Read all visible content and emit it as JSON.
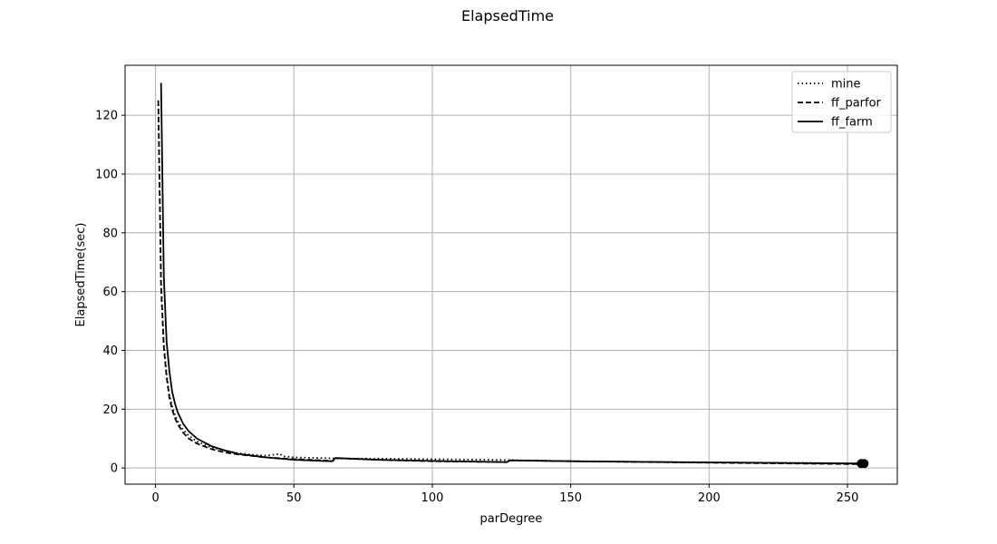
{
  "chart_data": {
    "type": "line",
    "title": "ElapsedTime",
    "xlabel": "parDegree",
    "ylabel": "ElapsedTime(sec)",
    "xlim": [
      -11,
      268
    ],
    "ylim": [
      -5.5,
      137
    ],
    "xticks": [
      0,
      50,
      100,
      150,
      200,
      250
    ],
    "yticks": [
      0,
      20,
      40,
      60,
      80,
      100,
      120
    ],
    "grid": true,
    "legend_position": "top-right",
    "series": [
      {
        "name": "mine",
        "style": "dotted",
        "color": "#000000",
        "points": [
          [
            1,
            125
          ],
          [
            2,
            63
          ],
          [
            3,
            42
          ],
          [
            4,
            32
          ],
          [
            5,
            25
          ],
          [
            6,
            21
          ],
          [
            7,
            18
          ],
          [
            8,
            16
          ],
          [
            10,
            13
          ],
          [
            12,
            11
          ],
          [
            15,
            9
          ],
          [
            20,
            7
          ],
          [
            25,
            6
          ],
          [
            30,
            5
          ],
          [
            35,
            4.5
          ],
          [
            40,
            4.2
          ],
          [
            45,
            4.8
          ],
          [
            46,
            4
          ],
          [
            50,
            3.6
          ],
          [
            60,
            3.4
          ],
          [
            64,
            3.3
          ],
          [
            65,
            3.2
          ],
          [
            80,
            3.2
          ],
          [
            100,
            3
          ],
          [
            128,
            2.7
          ],
          [
            150,
            2.3
          ],
          [
            200,
            1.9
          ],
          [
            256,
            1.6
          ]
        ]
      },
      {
        "name": "ff_parfor",
        "style": "dashed",
        "color": "#000000",
        "points": [
          [
            1,
            125
          ],
          [
            2,
            62
          ],
          [
            3,
            41
          ],
          [
            4,
            31
          ],
          [
            5,
            24
          ],
          [
            6,
            20
          ],
          [
            7,
            17
          ],
          [
            8,
            15
          ],
          [
            10,
            12
          ],
          [
            12,
            10
          ],
          [
            15,
            8.3
          ],
          [
            20,
            6.5
          ],
          [
            25,
            5.3
          ],
          [
            30,
            4.6
          ],
          [
            35,
            4.1
          ],
          [
            40,
            3.6
          ],
          [
            50,
            3
          ],
          [
            60,
            2.6
          ],
          [
            64,
            2.4
          ],
          [
            65,
            3.4
          ],
          [
            80,
            2.8
          ],
          [
            100,
            2.3
          ],
          [
            127,
            2
          ],
          [
            128,
            2.6
          ],
          [
            150,
            2.3
          ],
          [
            200,
            1.8
          ],
          [
            256,
            1.3
          ]
        ]
      },
      {
        "name": "ff_farm",
        "style": "solid",
        "color": "#000000",
        "points": [
          [
            2,
            131
          ],
          [
            3,
            65
          ],
          [
            4,
            43
          ],
          [
            5,
            33
          ],
          [
            6,
            26
          ],
          [
            7,
            22
          ],
          [
            8,
            19
          ],
          [
            10,
            15
          ],
          [
            12,
            12.5
          ],
          [
            15,
            10
          ],
          [
            20,
            7.5
          ],
          [
            25,
            6
          ],
          [
            30,
            4.8
          ],
          [
            35,
            4.2
          ],
          [
            40,
            3.6
          ],
          [
            50,
            2.8
          ],
          [
            60,
            2.4
          ],
          [
            64,
            2.3
          ],
          [
            65,
            3.4
          ],
          [
            80,
            2.8
          ],
          [
            100,
            2.4
          ],
          [
            127,
            2
          ],
          [
            128,
            2.6
          ],
          [
            150,
            2.3
          ],
          [
            200,
            1.9
          ],
          [
            256,
            1.5
          ]
        ]
      }
    ],
    "end_markers": [
      [
        255,
        1.5
      ],
      [
        256,
        1.5
      ]
    ]
  }
}
